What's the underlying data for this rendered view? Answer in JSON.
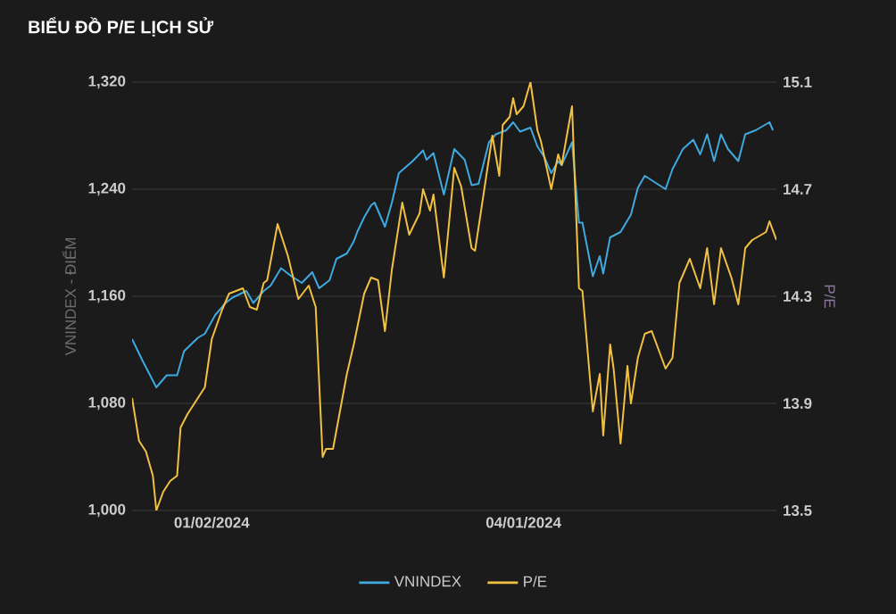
{
  "chart_data": {
    "type": "line",
    "title": "BIỂU ĐỒ P/E LỊCH SỬ",
    "ylabel": "VNINDEX - ĐIỂM",
    "y2label": "P/E",
    "xlim": [
      "2023-12-10",
      "2024-06-13"
    ],
    "xticks": [
      {
        "value": "2024-01-02",
        "label": "01/02/2024"
      },
      {
        "value": "2024-04-01",
        "label": "04/01/2024"
      }
    ],
    "ylim": [
      1000,
      1320
    ],
    "yticks": [
      {
        "value": 1000,
        "label": "1,000"
      },
      {
        "value": 1080,
        "label": "1,080"
      },
      {
        "value": 1160,
        "label": "1,160"
      },
      {
        "value": 1240,
        "label": "1,240"
      },
      {
        "value": 1320,
        "label": "1,320"
      }
    ],
    "y2lim": [
      13.5,
      15.1
    ],
    "y2ticks": [
      13.5,
      13.9,
      14.3,
      14.7,
      15.1
    ],
    "grid": "y",
    "legend": "bottom",
    "series": [
      {
        "name": "VNINDEX",
        "color": "#3fa9e0",
        "x": [
          "2023-12-10",
          "2023-12-13",
          "2023-12-17",
          "2023-12-20",
          "2023-12-23",
          "2023-12-25",
          "2023-12-27",
          "2023-12-29",
          "2023-12-31",
          "2024-01-03",
          "2024-01-06",
          "2024-01-08",
          "2024-01-12",
          "2024-01-14",
          "2024-01-17",
          "2024-01-19",
          "2024-01-22",
          "2024-01-25",
          "2024-01-28",
          "2024-01-31",
          "2024-02-02",
          "2024-02-05",
          "2024-02-07",
          "2024-02-10",
          "2024-02-12",
          "2024-02-13",
          "2024-02-15",
          "2024-02-17",
          "2024-02-18",
          "2024-02-21",
          "2024-02-23",
          "2024-02-25",
          "2024-02-29",
          "2024-03-03",
          "2024-03-04",
          "2024-03-06",
          "2024-03-09",
          "2024-03-12",
          "2024-03-15",
          "2024-03-17",
          "2024-03-19",
          "2024-03-22",
          "2024-03-24",
          "2024-03-27",
          "2024-03-29",
          "2024-03-31",
          "2024-04-03",
          "2024-04-05",
          "2024-04-07",
          "2024-04-09",
          "2024-04-11",
          "2024-04-12",
          "2024-04-15",
          "2024-04-17",
          "2024-04-18",
          "2024-04-21",
          "2024-04-23",
          "2024-04-24",
          "2024-04-26",
          "2024-04-29",
          "2024-05-02",
          "2024-05-04",
          "2024-05-06",
          "2024-05-12",
          "2024-05-14",
          "2024-05-17",
          "2024-05-20",
          "2024-05-22",
          "2024-05-24",
          "2024-05-26",
          "2024-05-28",
          "2024-05-30",
          "2024-06-02",
          "2024-06-04",
          "2024-06-07",
          "2024-06-11",
          "2024-06-12"
        ],
        "values": [
          1128,
          1112,
          1092,
          1101,
          1101,
          1119,
          1124,
          1129,
          1132,
          1146,
          1155,
          1159,
          1164,
          1155,
          1164,
          1168,
          1181,
          1175,
          1170,
          1178,
          1166,
          1172,
          1188,
          1192,
          1201,
          1208,
          1219,
          1228,
          1230,
          1212,
          1230,
          1252,
          1261,
          1269,
          1262,
          1267,
          1236,
          1270,
          1262,
          1243,
          1244,
          1275,
          1281,
          1284,
          1290,
          1283,
          1286,
          1272,
          1264,
          1252,
          1261,
          1258,
          1275,
          1215,
          1215,
          1175,
          1190,
          1177,
          1204,
          1208,
          1221,
          1241,
          1250,
          1240,
          1255,
          1270,
          1277,
          1266,
          1281,
          1261,
          1281,
          1270,
          1261,
          1281,
          1284,
          1290,
          1284
        ]
      },
      {
        "name": "P/E",
        "color": "#f2c043",
        "axis": "y2",
        "x": [
          "2023-12-10",
          "2023-12-12",
          "2023-12-14",
          "2023-12-16",
          "2023-12-17",
          "2023-12-19",
          "2023-12-21",
          "2023-12-23",
          "2023-12-24",
          "2023-12-26",
          "2023-12-29",
          "2023-12-31",
          "2024-01-02",
          "2024-01-05",
          "2024-01-07",
          "2024-01-11",
          "2024-01-13",
          "2024-01-15",
          "2024-01-17",
          "2024-01-18",
          "2024-01-21",
          "2024-01-24",
          "2024-01-27",
          "2024-01-30",
          "2024-02-01",
          "2024-02-03",
          "2024-02-04",
          "2024-02-06",
          "2024-02-08",
          "2024-02-10",
          "2024-02-12",
          "2024-02-15",
          "2024-02-17",
          "2024-02-19",
          "2024-02-21",
          "2024-02-23",
          "2024-02-26",
          "2024-02-28",
          "2024-03-02",
          "2024-03-03",
          "2024-03-05",
          "2024-03-06",
          "2024-03-09",
          "2024-03-12",
          "2024-03-14",
          "2024-03-17",
          "2024-03-18",
          "2024-03-23",
          "2024-03-25",
          "2024-03-26",
          "2024-03-28",
          "2024-03-29",
          "2024-03-30",
          "2024-04-01",
          "2024-04-03",
          "2024-04-05",
          "2024-04-06",
          "2024-04-08",
          "2024-04-09",
          "2024-04-11",
          "2024-04-12",
          "2024-04-15",
          "2024-04-17",
          "2024-04-18",
          "2024-04-21",
          "2024-04-23",
          "2024-04-24",
          "2024-04-26",
          "2024-04-27",
          "2024-04-29",
          "2024-05-01",
          "2024-05-02",
          "2024-05-04",
          "2024-05-06",
          "2024-05-08",
          "2024-05-12",
          "2024-05-14",
          "2024-05-16",
          "2024-05-19",
          "2024-05-22",
          "2024-05-24",
          "2024-05-26",
          "2024-05-28",
          "2024-05-31",
          "2024-06-02",
          "2024-06-04",
          "2024-06-06",
          "2024-06-10",
          "2024-06-11",
          "2024-06-13"
        ],
        "values": [
          13.92,
          13.76,
          13.72,
          13.63,
          13.5,
          13.57,
          13.61,
          13.63,
          13.81,
          13.86,
          13.92,
          13.96,
          14.14,
          14.25,
          14.31,
          14.33,
          14.26,
          14.25,
          14.35,
          14.36,
          14.57,
          14.45,
          14.29,
          14.34,
          14.26,
          13.7,
          13.73,
          13.73,
          13.87,
          14.01,
          14.12,
          14.31,
          14.37,
          14.36,
          14.17,
          14.4,
          14.65,
          14.53,
          14.61,
          14.7,
          14.62,
          14.68,
          14.37,
          14.78,
          14.71,
          14.48,
          14.47,
          14.9,
          14.75,
          14.94,
          14.97,
          15.04,
          14.98,
          15.01,
          15.1,
          14.92,
          14.88,
          14.76,
          14.7,
          14.83,
          14.79,
          15.01,
          14.33,
          14.32,
          13.87,
          14.01,
          13.78,
          14.12,
          14.03,
          13.75,
          14.04,
          13.9,
          14.07,
          14.16,
          14.17,
          14.03,
          14.07,
          14.35,
          14.44,
          14.33,
          14.48,
          14.27,
          14.48,
          14.37,
          14.27,
          14.48,
          14.51,
          14.54,
          14.58,
          14.51
        ]
      }
    ]
  }
}
